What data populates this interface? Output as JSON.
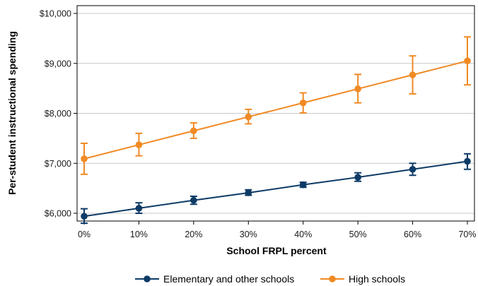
{
  "chart_data": {
    "type": "line",
    "xlabel": "School FRPL percent",
    "ylabel": "Per-student instructional spending",
    "x": [
      0,
      10,
      20,
      30,
      40,
      50,
      60,
      70
    ],
    "x_tick_labels": [
      "0%",
      "10%",
      "20%",
      "30%",
      "40%",
      "50%",
      "60%",
      "70%"
    ],
    "xlim": [
      0,
      70
    ],
    "y_ticks": [
      6000,
      7000,
      8000,
      9000,
      10000
    ],
    "y_tick_labels": [
      "$6,000",
      "$7,000",
      "$8,000",
      "$9,000",
      "$10,000"
    ],
    "ylim": [
      5650,
      10000
    ],
    "grid": "horizontal",
    "legend_position": "bottom",
    "series": [
      {
        "name": "Elementary and other schools",
        "color": "#0d3b66",
        "values": [
          5940,
          6100,
          6260,
          6410,
          6570,
          6720,
          6880,
          7040
        ],
        "lower": [
          5800,
          6000,
          6180,
          6360,
          6520,
          6640,
          6760,
          6880
        ],
        "upper": [
          6090,
          6210,
          6340,
          6470,
          6620,
          6810,
          7000,
          7190
        ]
      },
      {
        "name": "High schools",
        "color": "#f08a24",
        "values": [
          7090,
          7370,
          7650,
          7930,
          8210,
          8490,
          8770,
          9050
        ],
        "lower": [
          6780,
          7150,
          7500,
          7790,
          8010,
          8210,
          8390,
          8570
        ],
        "upper": [
          7400,
          7600,
          7810,
          8080,
          8410,
          8780,
          9150,
          9530
        ]
      }
    ]
  }
}
